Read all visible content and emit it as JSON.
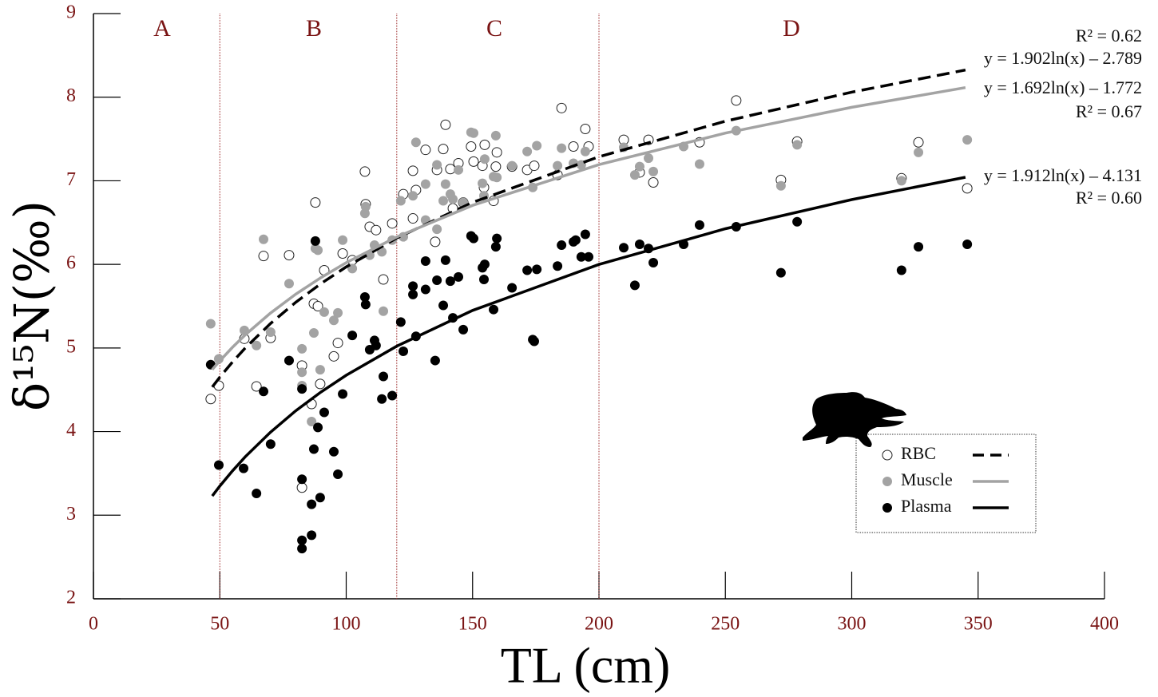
{
  "chart_data": {
    "type": "scatter",
    "xlabel": "TL (cm)",
    "ylabel": "δ¹⁵N(‰)",
    "xlim": [
      0,
      400
    ],
    "ylim": [
      2,
      9
    ],
    "xticks": [
      0,
      50,
      100,
      150,
      200,
      250,
      300,
      350,
      400
    ],
    "yticks": [
      2,
      3,
      4,
      5,
      6,
      7,
      8,
      9
    ],
    "zones": {
      "labels": [
        "A",
        "B",
        "C",
        "D"
      ],
      "boundaries": [
        50,
        120,
        200
      ],
      "color": "#a03030"
    },
    "legend": "lower right",
    "series": [
      {
        "name": "RBC",
        "marker": "open",
        "color": "#000000",
        "line_style": "dashed",
        "x": [
          46.4,
          49.6,
          59.7,
          64.5,
          67.3,
          70.1,
          77.4,
          82.5,
          82.5,
          86.3,
          87.2,
          87.8,
          88.8,
          89.7,
          91.3,
          95.1,
          96.7,
          98.6,
          102.4,
          107.4,
          107.7,
          109.3,
          111.8,
          114.7,
          118.2,
          122.6,
          126.4,
          126.4,
          127.6,
          131.4,
          135.9,
          135.2,
          138.4,
          139.3,
          141.2,
          142.2,
          144.4,
          146.3,
          149.4,
          150.4,
          153.9,
          154.8,
          154.5,
          158.3,
          159.2,
          159.6,
          165.6,
          171.6,
          174.4,
          183.6,
          185.2,
          189.9,
          194.6,
          195.9,
          209.8,
          216.1,
          219.6,
          221.5,
          239.8,
          254.3,
          272.0,
          278.4,
          319.7,
          326.4,
          345.7
        ],
        "values": [
          4.39,
          4.55,
          5.11,
          4.54,
          6.1,
          5.12,
          6.11,
          4.79,
          3.33,
          4.33,
          5.53,
          6.74,
          5.5,
          4.57,
          5.93,
          4.9,
          5.06,
          6.13,
          6.05,
          7.11,
          6.72,
          6.45,
          6.41,
          5.82,
          6.49,
          6.84,
          7.12,
          6.55,
          6.89,
          7.37,
          7.13,
          6.27,
          7.38,
          7.67,
          7.14,
          6.67,
          7.21,
          6.74,
          7.41,
          7.23,
          7.18,
          7.43,
          6.92,
          6.76,
          7.17,
          7.34,
          7.17,
          7.13,
          7.18,
          7.07,
          7.87,
          7.41,
          7.62,
          7.41,
          7.49,
          7.1,
          7.49,
          6.98,
          7.46,
          7.96,
          7.01,
          7.47,
          7.03,
          7.46,
          6.91
        ],
        "fit": {
          "equation": "y = 1.902ln(x) – 2.789",
          "r2": "R² = 0.62",
          "x": [
            47,
            50,
            55,
            60,
            70,
            80,
            90,
            100,
            120,
            150,
            200,
            250,
            300,
            345
          ],
          "values": [
            4.534,
            4.652,
            4.832,
            4.998,
            5.291,
            5.546,
            5.77,
            5.97,
            6.316,
            6.741,
            7.288,
            7.713,
            8.06,
            8.325
          ]
        }
      },
      {
        "name": "Muscle",
        "marker": "filled",
        "color": "#a3a3a3",
        "line_style": "solid",
        "x": [
          46.4,
          49.6,
          59.7,
          64.5,
          67.3,
          70.1,
          77.4,
          82.5,
          82.5,
          82.5,
          86.3,
          87.2,
          87.8,
          88.8,
          89.7,
          91.3,
          95.1,
          96.7,
          98.6,
          102.4,
          107.4,
          107.7,
          109.3,
          111.2,
          114.1,
          114.7,
          118.2,
          121.6,
          122.6,
          126.4,
          127.6,
          131.4,
          131.4,
          135.9,
          135.9,
          138.4,
          139.3,
          141.2,
          142.2,
          144.4,
          146.3,
          149.4,
          150.4,
          153.9,
          154.5,
          154.8,
          158.3,
          159.2,
          159.6,
          165.6,
          171.6,
          173.8,
          175.4,
          183.6,
          185.2,
          189.9,
          193.0,
          194.6,
          209.8,
          214.2,
          216.1,
          219.6,
          221.5,
          233.5,
          239.8,
          254.3,
          272.0,
          278.4,
          319.7,
          326.4,
          345.7
        ],
        "values": [
          5.29,
          4.87,
          5.21,
          5.03,
          6.3,
          5.19,
          5.77,
          4.99,
          4.71,
          4.55,
          4.12,
          5.18,
          6.19,
          6.17,
          4.74,
          5.43,
          5.33,
          5.42,
          6.29,
          5.95,
          6.61,
          6.69,
          6.11,
          6.23,
          6.15,
          5.44,
          6.29,
          6.76,
          6.33,
          6.82,
          7.46,
          6.53,
          6.96,
          6.42,
          7.19,
          6.76,
          6.96,
          6.84,
          6.78,
          7.13,
          6.74,
          7.58,
          7.57,
          6.97,
          6.82,
          7.26,
          7.05,
          7.54,
          7.04,
          7.18,
          7.35,
          6.92,
          7.42,
          7.18,
          7.39,
          7.21,
          7.19,
          7.35,
          7.4,
          7.07,
          7.17,
          7.27,
          7.11,
          7.41,
          7.2,
          7.6,
          6.94,
          7.43,
          7.0,
          7.34,
          7.49
        ],
        "fit": {
          "equation": "y = 1.692ln(x) – 1.772",
          "r2": "R² = 0.67",
          "x": [
            47,
            50,
            55,
            60,
            70,
            80,
            90,
            100,
            120,
            150,
            200,
            250,
            300,
            345
          ],
          "values": [
            4.742,
            4.847,
            5.008,
            5.155,
            5.416,
            5.643,
            5.842,
            6.02,
            6.328,
            6.706,
            7.193,
            7.57,
            7.879,
            8.115
          ]
        }
      },
      {
        "name": "Plasma",
        "marker": "filled",
        "color": "#000000",
        "line_style": "solid",
        "x": [
          46.4,
          49.6,
          59.4,
          64.5,
          67.3,
          70.1,
          77.4,
          82.5,
          82.5,
          82.5,
          82.5,
          86.3,
          86.3,
          87.2,
          87.8,
          88.8,
          89.7,
          91.3,
          95.1,
          96.7,
          98.6,
          102.4,
          107.4,
          107.7,
          109.3,
          111.2,
          111.8,
          114.1,
          114.7,
          118.2,
          121.6,
          122.6,
          126.4,
          126.4,
          127.6,
          131.4,
          131.4,
          135.2,
          135.9,
          138.4,
          139.3,
          141.2,
          142.2,
          144.4,
          146.3,
          149.4,
          150.4,
          153.9,
          154.8,
          154.5,
          158.3,
          159.2,
          159.6,
          165.6,
          171.6,
          173.8,
          174.4,
          175.4,
          183.6,
          185.2,
          189.9,
          190.8,
          193.0,
          194.6,
          195.9,
          209.8,
          214.2,
          216.1,
          219.6,
          221.5,
          233.5,
          239.8,
          254.3,
          272.0,
          278.4,
          319.7,
          326.4,
          345.7
        ],
        "values": [
          4.8,
          3.6,
          3.56,
          3.26,
          4.48,
          3.85,
          4.85,
          3.43,
          2.7,
          2.6,
          4.51,
          3.13,
          2.76,
          3.79,
          6.28,
          4.05,
          3.21,
          4.23,
          3.76,
          3.49,
          4.45,
          5.15,
          5.61,
          5.52,
          4.98,
          5.09,
          5.03,
          4.39,
          4.66,
          4.43,
          5.31,
          4.96,
          5.74,
          5.64,
          5.14,
          6.04,
          5.7,
          4.85,
          5.81,
          5.51,
          6.05,
          5.8,
          5.36,
          5.85,
          5.22,
          6.34,
          6.31,
          5.96,
          6.0,
          5.82,
          5.46,
          6.21,
          6.31,
          5.72,
          5.93,
          5.1,
          5.08,
          5.94,
          5.98,
          6.23,
          6.27,
          6.29,
          6.09,
          6.36,
          6.09,
          6.2,
          5.75,
          6.24,
          6.19,
          6.02,
          6.24,
          6.47,
          6.45,
          5.9,
          6.51,
          5.93,
          6.21,
          6.24
        ],
        "fit": {
          "equation": "y = 1.912ln(x) – 4.131",
          "r2": "R² = 0.60",
          "x": [
            47,
            50,
            55,
            60,
            70,
            80,
            90,
            100,
            120,
            150,
            200,
            250,
            300,
            345
          ],
          "values": [
            3.23,
            3.349,
            3.53,
            3.697,
            3.991,
            4.248,
            4.473,
            4.674,
            5.022,
            5.449,
            5.999,
            6.426,
            6.775,
            7.042
          ]
        }
      }
    ]
  }
}
